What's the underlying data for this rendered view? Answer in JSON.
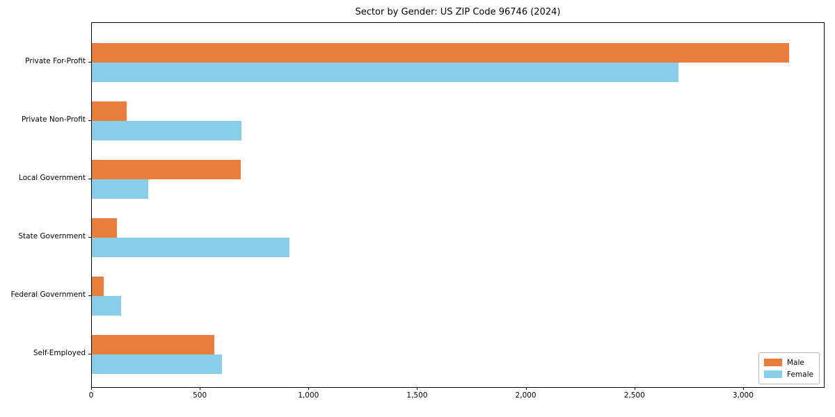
{
  "figure": {
    "background": "#ffffff"
  },
  "chart_data": {
    "type": "bar",
    "orientation": "horizontal",
    "title": "Sector by Gender: US ZIP Code 96746 (2024)",
    "categories": [
      "Private For-Profit",
      "Private Non-Profit",
      "Local Government",
      "State Government",
      "Federal Government",
      "Self-Employed"
    ],
    "series": [
      {
        "name": "Male",
        "color": "#e87d3c",
        "values": [
          3210,
          160,
          685,
          115,
          55,
          565
        ]
      },
      {
        "name": "Female",
        "color": "#87ceeb",
        "values": [
          2700,
          690,
          260,
          910,
          135,
          600
        ]
      }
    ],
    "xlabel": "",
    "ylabel": "",
    "xlim": [
      0,
      3375
    ],
    "xticks": [
      0,
      500,
      1000,
      1500,
      2000,
      2500,
      3000
    ],
    "xtick_labels": [
      "0",
      "500",
      "1,000",
      "1,500",
      "2,000",
      "2,500",
      "3,000"
    ],
    "grid": false,
    "legend": {
      "position": "lower-right",
      "entries": [
        "Male",
        "Female"
      ]
    }
  },
  "colors": {
    "male": "#e87d3c",
    "female": "#87ceeb",
    "spine": "#000000",
    "text": "#000000",
    "legend_border": "#b7b7b7"
  }
}
